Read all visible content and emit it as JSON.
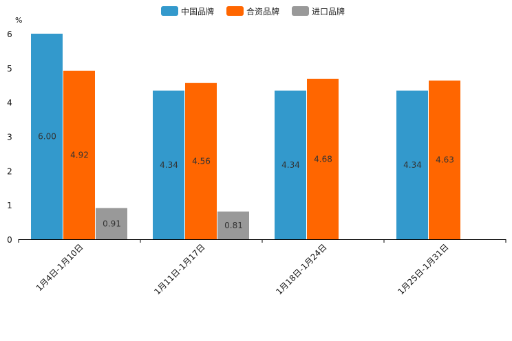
{
  "chart_data": {
    "type": "bar",
    "unit_label": "%",
    "categories": [
      "1月4日-1月10日",
      "1月11日-1月17日",
      "1月18日-1月24日",
      "1月25日-1月31日"
    ],
    "series": [
      {
        "name": "中国品牌",
        "color": "#3399cc",
        "values": [
          6.0,
          4.34,
          4.34,
          4.34
        ],
        "labels": [
          "6.00",
          "4.34",
          "4.34",
          "4.34"
        ]
      },
      {
        "name": "合资品牌",
        "color": "#ff6600",
        "values": [
          4.92,
          4.56,
          4.68,
          4.63
        ],
        "labels": [
          "4.92",
          "4.56",
          "4.68",
          "4.63"
        ]
      },
      {
        "name": "进口品牌",
        "color": "#999999",
        "values": [
          0.91,
          0.81,
          null,
          null
        ],
        "labels": [
          "0.91",
          "0.81",
          null,
          null
        ]
      }
    ],
    "yticks": [
      0,
      1,
      2,
      3,
      4,
      5,
      6
    ],
    "ylim": [
      0,
      6
    ],
    "legend_position": "top-center"
  }
}
